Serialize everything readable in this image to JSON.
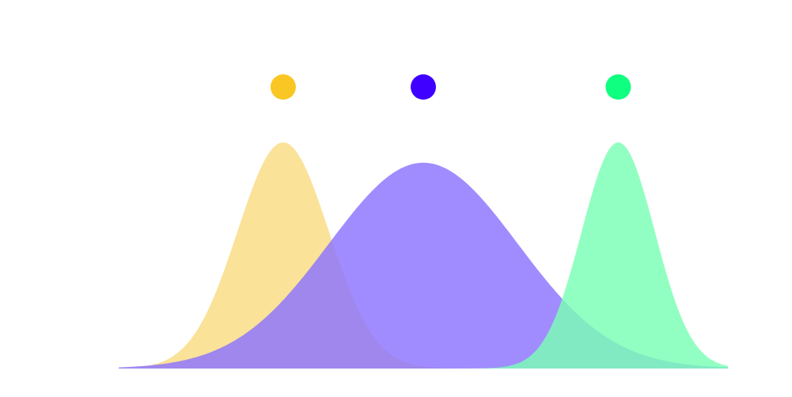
{
  "chart_data": {
    "type": "area",
    "title": "",
    "xlabel": "",
    "ylabel": "",
    "grid": false,
    "legend": "top-center",
    "xlim": [
      0,
      100
    ],
    "ylim": [
      0,
      100
    ],
    "series": [
      {
        "color": "#f9c623",
        "fill": "#f9dc82",
        "peak_x": 27,
        "peak_y": 100,
        "spread": 7.5
      },
      {
        "color": "#3f00ff",
        "fill": "#8b73ff",
        "peak_x": 50,
        "peak_y": 91,
        "spread": 15.5
      },
      {
        "color": "#0fff80",
        "fill": "#7affb5",
        "peak_x": 82,
        "peak_y": 100,
        "spread": 6
      }
    ]
  }
}
